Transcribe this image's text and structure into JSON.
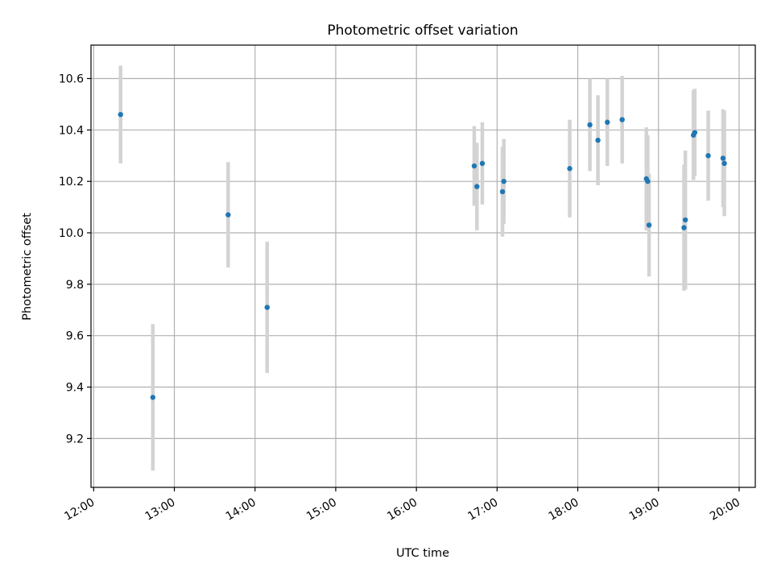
{
  "chart_data": {
    "type": "scatter",
    "title": "Photometric offset variation",
    "xlabel": "UTC time",
    "ylabel": "Photometric offset",
    "x_ticks": [
      "12:00",
      "13:00",
      "14:00",
      "15:00",
      "16:00",
      "17:00",
      "18:00",
      "19:00",
      "20:00"
    ],
    "y_ticks": [
      "9.2",
      "9.4",
      "9.6",
      "9.8",
      "10.0",
      "10.2",
      "10.4",
      "10.6"
    ],
    "xlim": [
      "11:58",
      "20:12"
    ],
    "ylim": [
      9.01,
      10.73
    ],
    "grid": true,
    "colors": {
      "point": "#1f77b4",
      "errorbar": "#d3d3d3",
      "grid": "#b0b0b0"
    },
    "series": [
      {
        "points": [
          {
            "time": "12:20",
            "y": 10.46,
            "err": 0.19
          },
          {
            "time": "12:44",
            "y": 9.36,
            "err": 0.285
          },
          {
            "time": "13:40",
            "y": 10.07,
            "err": 0.205
          },
          {
            "time": "14:09",
            "y": 9.71,
            "err": 0.255
          },
          {
            "time": "16:43",
            "y": 10.26,
            "err": 0.155
          },
          {
            "time": "16:45",
            "y": 10.18,
            "err": 0.17
          },
          {
            "time": "16:49",
            "y": 10.27,
            "err": 0.16
          },
          {
            "time": "17:04",
            "y": 10.16,
            "err": 0.175
          },
          {
            "time": "17:05",
            "y": 10.2,
            "err": 0.165
          },
          {
            "time": "17:54",
            "y": 10.25,
            "err": 0.19
          },
          {
            "time": "18:09",
            "y": 10.42,
            "err": 0.18
          },
          {
            "time": "18:15",
            "y": 10.36,
            "err": 0.175
          },
          {
            "time": "18:22",
            "y": 10.43,
            "err": 0.17
          },
          {
            "time": "18:33",
            "y": 10.44,
            "err": 0.17
          },
          {
            "time": "18:51",
            "y": 10.21,
            "err": 0.2
          },
          {
            "time": "18:52",
            "y": 10.2,
            "err": 0.18
          },
          {
            "time": "18:53",
            "y": 10.03,
            "err": 0.2
          },
          {
            "time": "19:19",
            "y": 10.02,
            "err": 0.245
          },
          {
            "time": "19:20",
            "y": 10.05,
            "err": 0.27
          },
          {
            "time": "19:26",
            "y": 10.38,
            "err": 0.175
          },
          {
            "time": "19:27",
            "y": 10.39,
            "err": 0.17
          },
          {
            "time": "19:37",
            "y": 10.3,
            "err": 0.175
          },
          {
            "time": "19:48",
            "y": 10.29,
            "err": 0.19
          },
          {
            "time": "19:49",
            "y": 10.27,
            "err": 0.205
          }
        ]
      }
    ]
  }
}
